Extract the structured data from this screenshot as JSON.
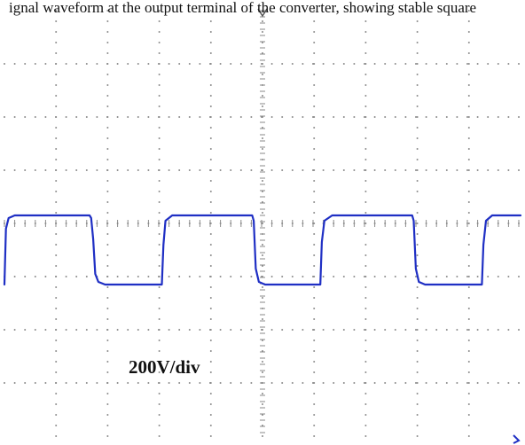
{
  "caption_fragment": "ignal waveform at the output terminal of the converter, showing stable square",
  "chart_data": {
    "type": "line",
    "title": "",
    "xlabel": "",
    "ylabel": "",
    "scale_label": "200V/div",
    "grid": true,
    "x_divisions": 10,
    "y_divisions": 8,
    "xlim": [
      0,
      10
    ],
    "ylim": [
      -4,
      4
    ],
    "series": [
      {
        "color": "#1f2fc4",
        "points": [
          [
            0.0,
            -1.15
          ],
          [
            0.03,
            -0.1
          ],
          [
            0.08,
            0.1
          ],
          [
            0.2,
            0.15
          ],
          [
            1.65,
            0.15
          ],
          [
            1.68,
            0.1
          ],
          [
            1.72,
            -0.3
          ],
          [
            1.76,
            -0.95
          ],
          [
            1.82,
            -1.1
          ],
          [
            1.95,
            -1.15
          ],
          [
            3.05,
            -1.15
          ],
          [
            3.08,
            -0.4
          ],
          [
            3.12,
            0.05
          ],
          [
            3.25,
            0.15
          ],
          [
            4.8,
            0.15
          ],
          [
            4.83,
            0.05
          ],
          [
            4.87,
            -0.85
          ],
          [
            4.93,
            -1.1
          ],
          [
            5.05,
            -1.15
          ],
          [
            6.12,
            -1.15
          ],
          [
            6.15,
            -0.35
          ],
          [
            6.2,
            0.05
          ],
          [
            6.35,
            0.15
          ],
          [
            7.9,
            0.15
          ],
          [
            7.93,
            0.05
          ],
          [
            7.97,
            -0.85
          ],
          [
            8.03,
            -1.1
          ],
          [
            8.15,
            -1.15
          ],
          [
            9.25,
            -1.15
          ],
          [
            9.28,
            -0.4
          ],
          [
            9.33,
            0.05
          ],
          [
            9.45,
            0.15
          ],
          [
            10.0,
            0.15
          ]
        ]
      }
    ]
  },
  "markers": {
    "trigger_color": "#555555",
    "ground_color": "#1f2fc4"
  }
}
